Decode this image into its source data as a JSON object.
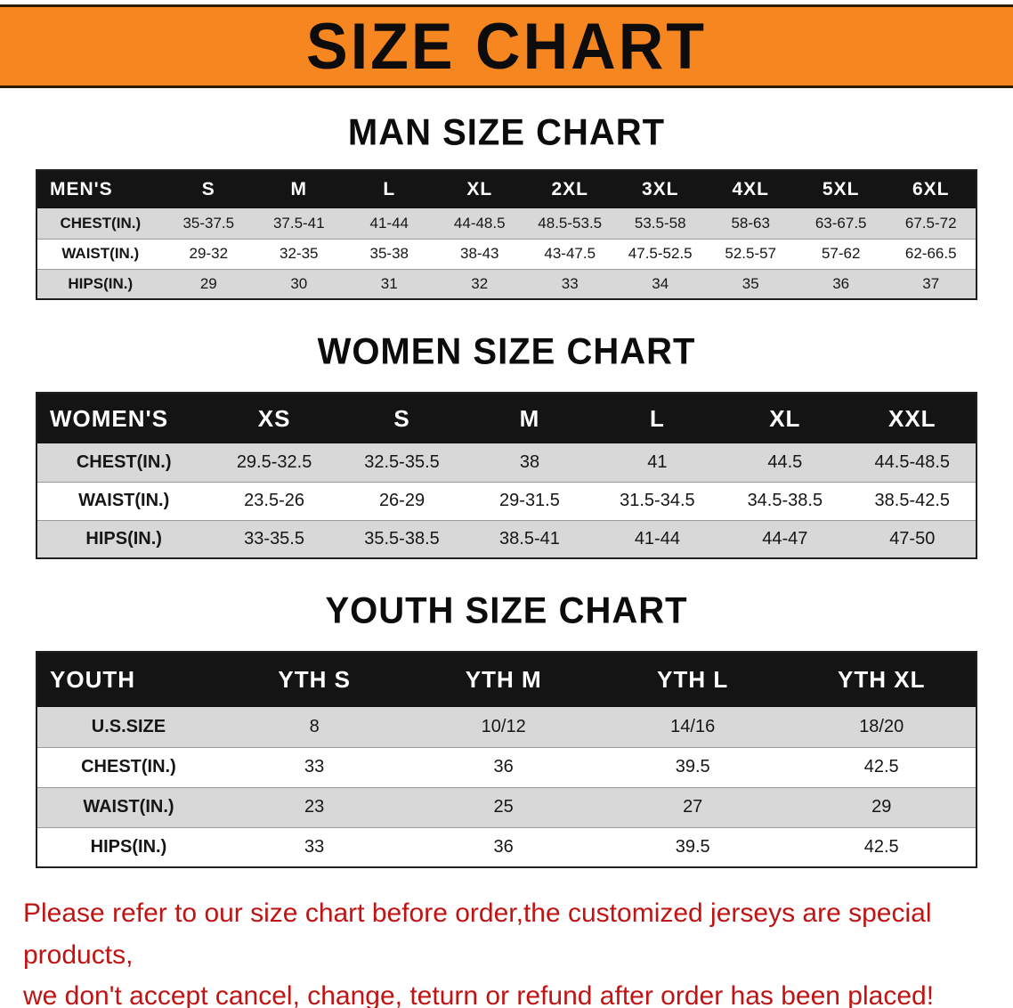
{
  "banner": {
    "title": "SIZE CHART"
  },
  "colors": {
    "banner_bg": "#f6861f",
    "table_header_bg": "#141414",
    "table_header_text": "#ffffff",
    "row_alt_bg": "#d8d8d8",
    "note_text": "#c01414"
  },
  "sections": [
    {
      "heading": "MAN SIZE CHART",
      "table": {
        "header": [
          "MEN'S",
          "S",
          "M",
          "L",
          "XL",
          "2XL",
          "3XL",
          "4XL",
          "5XL",
          "6XL"
        ],
        "rows": [
          {
            "label": "CHEST(IN.)",
            "values": [
              "35-37.5",
              "37.5-41",
              "41-44",
              "44-48.5",
              "48.5-53.5",
              "53.5-58",
              "58-63",
              "63-67.5",
              "67.5-72"
            ]
          },
          {
            "label": "WAIST(IN.)",
            "values": [
              "29-32",
              "32-35",
              "35-38",
              "38-43",
              "43-47.5",
              "47.5-52.5",
              "52.5-57",
              "57-62",
              "62-66.5"
            ]
          },
          {
            "label": "HIPS(IN.)",
            "values": [
              "29",
              "30",
              "31",
              "32",
              "33",
              "34",
              "35",
              "36",
              "37"
            ]
          }
        ]
      }
    },
    {
      "heading": "WOMEN SIZE CHART",
      "table": {
        "header": [
          "WOMEN'S",
          "XS",
          "S",
          "M",
          "L",
          "XL",
          "XXL"
        ],
        "rows": [
          {
            "label": "CHEST(IN.)",
            "values": [
              "29.5-32.5",
              "32.5-35.5",
              "38",
              "41",
              "44.5",
              "44.5-48.5"
            ]
          },
          {
            "label": "WAIST(IN.)",
            "values": [
              "23.5-26",
              "26-29",
              "29-31.5",
              "31.5-34.5",
              "34.5-38.5",
              "38.5-42.5"
            ]
          },
          {
            "label": "HIPS(IN.)",
            "values": [
              "33-35.5",
              "35.5-38.5",
              "38.5-41",
              "41-44",
              "44-47",
              "47-50"
            ]
          }
        ]
      }
    },
    {
      "heading": "YOUTH SIZE CHART",
      "table": {
        "header": [
          "YOUTH",
          "YTH S",
          "YTH M",
          "YTH L",
          "YTH XL"
        ],
        "rows": [
          {
            "label": "U.S.SIZE",
            "values": [
              "8",
              "10/12",
              "14/16",
              "18/20"
            ]
          },
          {
            "label": "CHEST(IN.)",
            "values": [
              "33",
              "36",
              "39.5",
              "42.5"
            ]
          },
          {
            "label": "WAIST(IN.)",
            "values": [
              "23",
              "25",
              "27",
              "29"
            ]
          },
          {
            "label": "HIPS(IN.)",
            "values": [
              "33",
              "36",
              "39.5",
              "42.5"
            ]
          }
        ]
      }
    }
  ],
  "footer": {
    "lines": [
      "Please refer to our size chart before order,the customized jerseys are special products,",
      "we don't accept cancel, change, teturn or refund after order has been placed!"
    ]
  }
}
